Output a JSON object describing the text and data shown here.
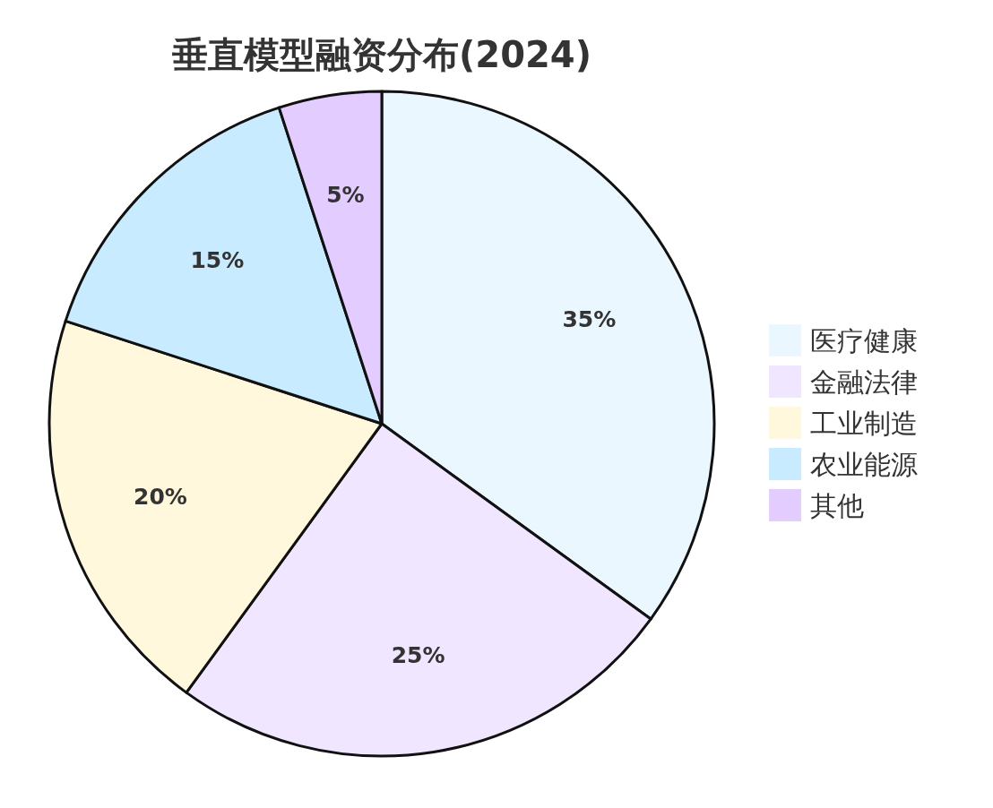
{
  "chart_data": {
    "type": "pie",
    "title": "垂直模型融资分布(2024)",
    "categories": [
      "医疗健康",
      "金融法律",
      "工业制造",
      "农业能源",
      "其他"
    ],
    "values": [
      35,
      25,
      20,
      15,
      5
    ],
    "colors": [
      "#eaf7ff",
      "#f0e6ff",
      "#fff8dc",
      "#c9ebff",
      "#e3ccff"
    ],
    "value_labels": [
      "35%",
      "25%",
      "20%",
      "15%",
      "5%"
    ],
    "legend": "right"
  }
}
